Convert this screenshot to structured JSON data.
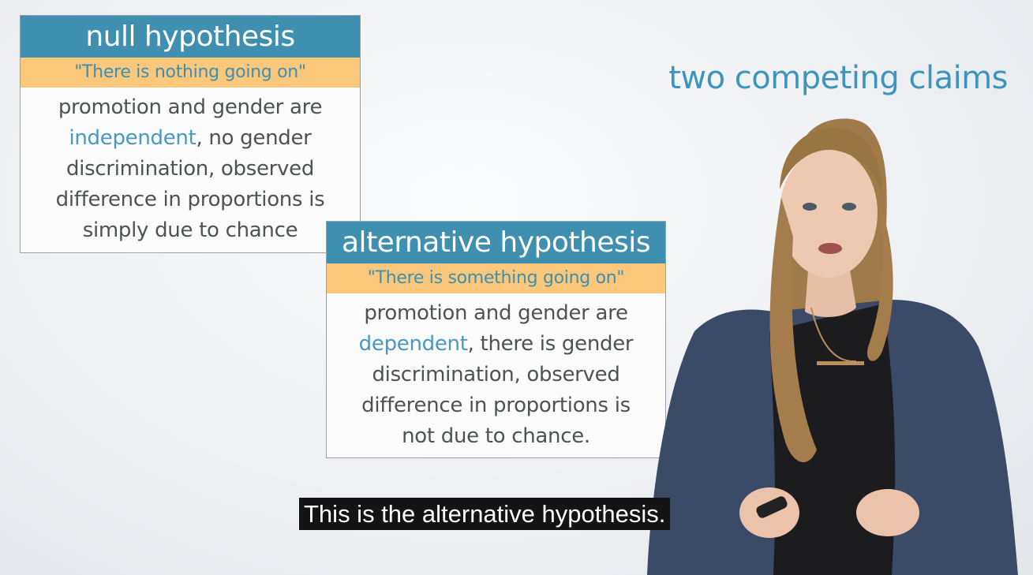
{
  "headline": "two competing claims",
  "null_card": {
    "title": "null hypothesis",
    "quote": "\"There is nothing going on\"",
    "body_line1": "promotion and gender are",
    "body_highlight": "independent",
    "body_line2_rest": ", no gender",
    "body_line3": "discrimination, observed",
    "body_line4": "difference in proportions is",
    "body_line5": "simply due to chance"
  },
  "alt_card": {
    "title": "alternative hypothesis",
    "quote": "\"There is something going on\"",
    "body_line1": "promotion and gender are",
    "body_highlight": "dependent",
    "body_line2_rest": ", there is gender",
    "body_line3": "discrimination, observed",
    "body_line4": "difference in proportions is",
    "body_line5": "not due to chance."
  },
  "caption": "This is the alternative hypothesis.",
  "colors": {
    "title_blue": "#3f8fb1",
    "quote_orange": "#fbc77b",
    "highlight_blue": "#4a98bf",
    "body_gray": "#4f5254"
  }
}
